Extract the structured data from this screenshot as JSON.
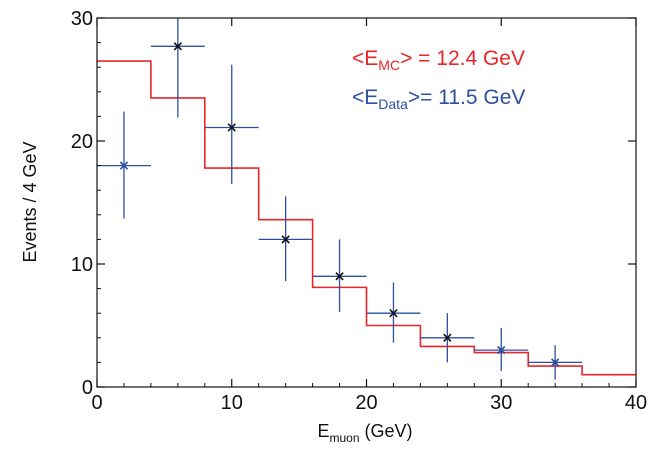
{
  "chart_data": {
    "type": "histogram",
    "title": "",
    "xlabel": {
      "main": "E",
      "sub": "muon",
      "rest": " (GeV)"
    },
    "ylabel": "Events / 4 GeV",
    "xlim": [
      0,
      40
    ],
    "ylim": [
      0,
      30
    ],
    "xticks": [
      0,
      10,
      20,
      30,
      40
    ],
    "yticks": [
      0,
      10,
      20,
      30
    ],
    "grid": false,
    "series": [
      {
        "name": "MC",
        "kind": "step",
        "color": "#e8262a",
        "bin_edges": [
          0,
          4,
          8,
          12,
          16,
          20,
          24,
          28,
          32,
          36,
          40
        ],
        "values": [
          26.5,
          23.5,
          17.8,
          13.6,
          8.1,
          5.0,
          3.3,
          2.8,
          1.7,
          1.0
        ]
      },
      {
        "name": "Data",
        "kind": "points",
        "points": [
          {
            "x": 2,
            "y": 18.0,
            "xerr": 2,
            "yerr_lo": 4.3,
            "yerr_hi": 4.4,
            "color": "#2c4fa0"
          },
          {
            "x": 6,
            "y": 27.7,
            "xerr": 2,
            "yerr_lo": 5.8,
            "yerr_hi": 2.3,
            "color": "#111111"
          },
          {
            "x": 10,
            "y": 21.1,
            "xerr": 2,
            "yerr_lo": 4.6,
            "yerr_hi": 5.1,
            "color": "#111111"
          },
          {
            "x": 14,
            "y": 12.0,
            "xerr": 2,
            "yerr_lo": 3.4,
            "yerr_hi": 3.5,
            "color": "#111111"
          },
          {
            "x": 18,
            "y": 9.0,
            "xerr": 2,
            "yerr_lo": 2.9,
            "yerr_hi": 3.0,
            "color": "#111111"
          },
          {
            "x": 22,
            "y": 6.0,
            "xerr": 2,
            "yerr_lo": 2.4,
            "yerr_hi": 2.5,
            "color": "#111111"
          },
          {
            "x": 26,
            "y": 4.0,
            "xerr": 2,
            "yerr_lo": 2.0,
            "yerr_hi": 2.0,
            "color": "#111111"
          },
          {
            "x": 30,
            "y": 3.0,
            "xerr": 2,
            "yerr_lo": 1.7,
            "yerr_hi": 1.8,
            "color": "#2c4fa0"
          },
          {
            "x": 34,
            "y": 2.0,
            "xerr": 2,
            "yerr_lo": 1.4,
            "yerr_hi": 1.4,
            "color": "#2c4fa0"
          }
        ],
        "error_bar_color": "#2c4fa0"
      }
    ],
    "annotations": [
      {
        "id": "mc",
        "color": "#e8262a",
        "prefix": "<E",
        "sub": "MC",
        "suffix": "> = 12.4 GeV"
      },
      {
        "id": "data",
        "color": "#2c4fa0",
        "prefix": "<E",
        "sub": "Data",
        "suffix": ">= 11.5 GeV"
      }
    ],
    "annotation_placement": "top-right"
  }
}
